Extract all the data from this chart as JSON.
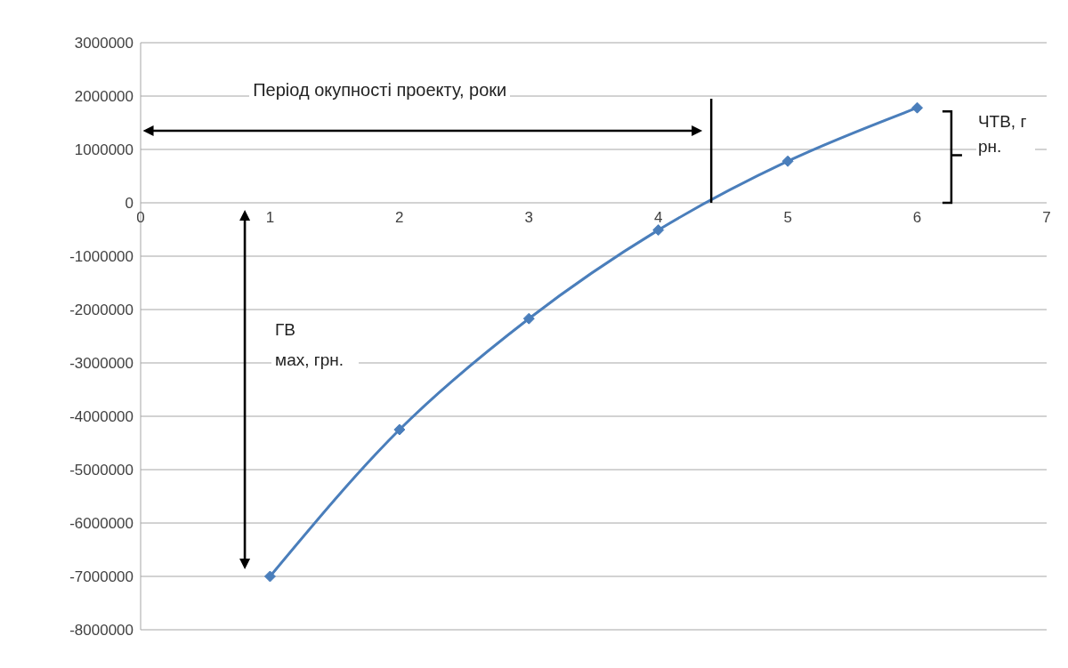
{
  "chart_data": {
    "type": "line",
    "x": [
      1,
      2,
      3,
      4,
      5,
      6
    ],
    "series": [
      {
        "color": "#4a7ebb",
        "values": [
          -7000000,
          -4250000,
          -2170000,
          -510000,
          780000,
          1780000
        ]
      }
    ],
    "xlim": [
      0,
      7
    ],
    "xticks": [
      0,
      1,
      2,
      3,
      4,
      5,
      6,
      7
    ],
    "ylim": [
      -8000000,
      3000000
    ],
    "yticks": [
      -8000000,
      -7000000,
      -6000000,
      -5000000,
      -4000000,
      -3000000,
      -2000000,
      -1000000,
      0,
      1000000,
      2000000,
      3000000
    ],
    "grid": "y",
    "legend": false,
    "marker": "diamond",
    "line_style": "solid",
    "annotations": [
      "Період окупності проекту, роки",
      "ГВ мах, грн.",
      "ЧТВ, грн."
    ]
  }
}
